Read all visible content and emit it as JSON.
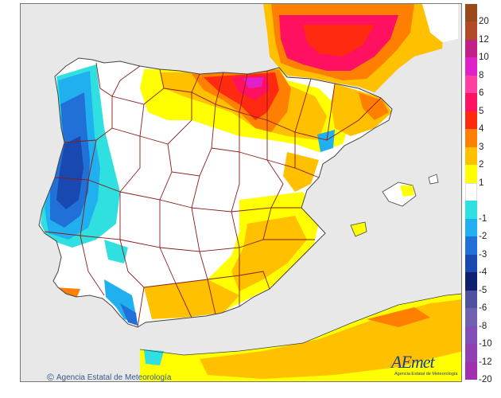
{
  "credit": {
    "text": "Agencia Estatal de Meteorología",
    "icon": "copyright-icon"
  },
  "logo": {
    "text": "AEmet",
    "subtitle": "Agencia Estatal de Meteorología"
  },
  "legend": {
    "items": [
      {
        "label": "20",
        "color": "#9a4a1a"
      },
      {
        "label": "12",
        "color": "#b24a2a"
      },
      {
        "label": "10",
        "color": "#c0208a"
      },
      {
        "label": "8",
        "color": "#e020c8"
      },
      {
        "label": "6",
        "color": "#ff40a0"
      },
      {
        "label": "5",
        "color": "#ff1060"
      },
      {
        "label": "4",
        "color": "#ff2a10"
      },
      {
        "label": "3",
        "color": "#ff8000"
      },
      {
        "label": "2",
        "color": "#ffc000"
      },
      {
        "label": "1",
        "color": "#ffff00"
      },
      {
        "label": "",
        "color": "#ffffff"
      },
      {
        "label": "-1",
        "color": "#30e0e0"
      },
      {
        "label": "-2",
        "color": "#20b0f0"
      },
      {
        "label": "-3",
        "color": "#2070d8"
      },
      {
        "label": "-4",
        "color": "#1848b0"
      },
      {
        "label": "-5",
        "color": "#102070"
      },
      {
        "label": "-6",
        "color": "#5050a0"
      },
      {
        "label": "-8",
        "color": "#7060b0"
      },
      {
        "label": "-10",
        "color": "#8050b8"
      },
      {
        "label": "-12",
        "color": "#9040b0"
      },
      {
        "label": "-20",
        "color": "#a030b0"
      }
    ]
  },
  "colors": {
    "sea": "#e8e8e8",
    "land": "#ffffff",
    "border": "#8b1a1a"
  }
}
